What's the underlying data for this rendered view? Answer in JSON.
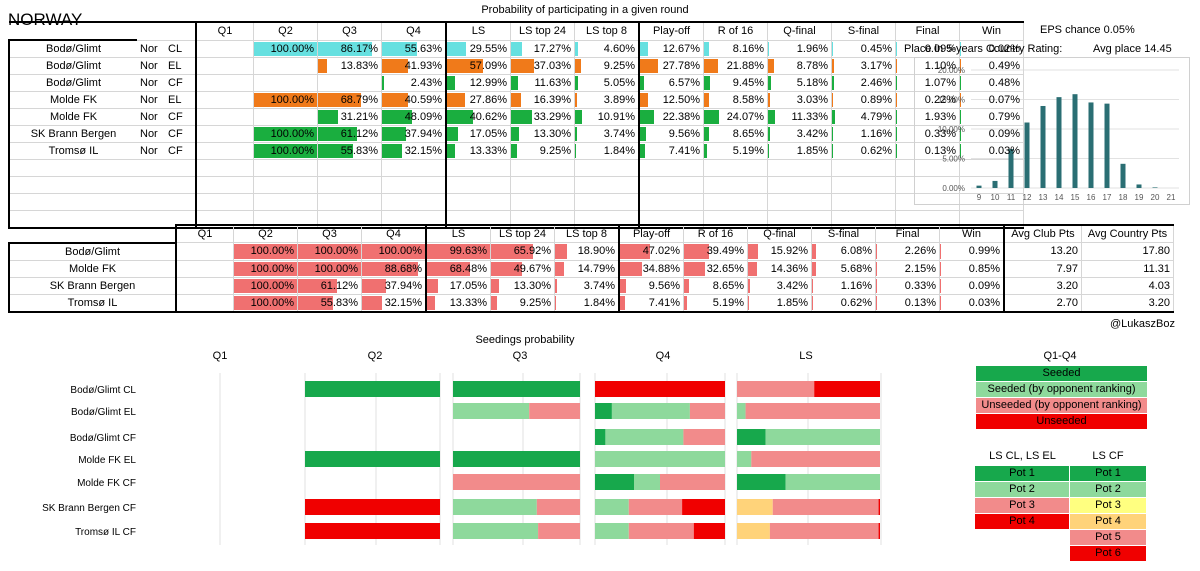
{
  "country": "NORWAY",
  "table1": {
    "title": "Probability of participating in a given round",
    "headers": [
      "Q1",
      "Q2",
      "Q3",
      "Q4",
      "LS",
      "LS top 24",
      "LS top 8",
      "Play-off",
      "R of 16",
      "Q-final",
      "S-final",
      "Final",
      "Win"
    ],
    "rows": [
      {
        "club": "Bodø/Glimt",
        "nat": "Nor",
        "comp": "CL",
        "values": [
          "",
          "100.00%",
          "86.17%",
          "55.63%",
          "29.55%",
          "17.27%",
          "4.60%",
          "12.67%",
          "8.16%",
          "1.96%",
          "0.45%",
          "0.09%",
          "0.02%"
        ]
      },
      {
        "club": "Bodø/Glimt",
        "nat": "Nor",
        "comp": "EL",
        "values": [
          "",
          "",
          "13.83%",
          "41.93%",
          "57.09%",
          "37.03%",
          "9.25%",
          "27.78%",
          "21.88%",
          "8.78%",
          "3.17%",
          "1.10%",
          "0.49%"
        ]
      },
      {
        "club": "Bodø/Glimt",
        "nat": "Nor",
        "comp": "CF",
        "values": [
          "",
          "",
          "",
          "2.43%",
          "12.99%",
          "11.63%",
          "5.05%",
          "6.57%",
          "9.45%",
          "5.18%",
          "2.46%",
          "1.07%",
          "0.48%"
        ]
      },
      {
        "club": "Molde FK",
        "nat": "Nor",
        "comp": "EL",
        "values": [
          "",
          "100.00%",
          "68.79%",
          "40.59%",
          "27.86%",
          "16.39%",
          "3.89%",
          "12.50%",
          "8.58%",
          "3.03%",
          "0.89%",
          "0.22%",
          "0.07%"
        ]
      },
      {
        "club": "Molde FK",
        "nat": "Nor",
        "comp": "CF",
        "values": [
          "",
          "",
          "31.21%",
          "48.09%",
          "40.62%",
          "33.29%",
          "10.91%",
          "22.38%",
          "24.07%",
          "11.33%",
          "4.79%",
          "1.93%",
          "0.79%"
        ]
      },
      {
        "club": "SK Brann Bergen",
        "nat": "Nor",
        "comp": "CF",
        "values": [
          "",
          "100.00%",
          "61.12%",
          "37.94%",
          "17.05%",
          "13.30%",
          "3.74%",
          "9.56%",
          "8.65%",
          "3.42%",
          "1.16%",
          "0.33%",
          "0.09%"
        ]
      },
      {
        "club": "Tromsø IL",
        "nat": "Nor",
        "comp": "CF",
        "values": [
          "",
          "100.00%",
          "55.83%",
          "32.15%",
          "13.33%",
          "9.25%",
          "1.84%",
          "7.41%",
          "5.19%",
          "1.85%",
          "0.62%",
          "0.13%",
          "0.03%"
        ]
      }
    ],
    "empty_rows": 4
  },
  "eps": {
    "label": "EPS chance",
    "value": "0.05%"
  },
  "place": {
    "label": "Place in 5-years Country  Rating:",
    "avg_label": "Avg place",
    "avg_value": "14.45"
  },
  "table2": {
    "headers": [
      "Q1",
      "Q2",
      "Q3",
      "Q4",
      "LS",
      "LS top 24",
      "LS top 8",
      "Play-off",
      "R of 16",
      "Q-final",
      "S-final",
      "Final",
      "Win",
      "Avg Club Pts",
      "Avg Country Pts"
    ],
    "rows": [
      {
        "club": "Bodø/Glimt",
        "values": [
          "",
          "100.00%",
          "100.00%",
          "100.00%",
          "99.63%",
          "65.92%",
          "18.90%",
          "47.02%",
          "39.49%",
          "15.92%",
          "6.08%",
          "2.26%",
          "0.99%",
          "13.20",
          "17.80"
        ]
      },
      {
        "club": "Molde FK",
        "values": [
          "",
          "100.00%",
          "100.00%",
          "88.68%",
          "68.48%",
          "49.67%",
          "14.79%",
          "34.88%",
          "32.65%",
          "14.36%",
          "5.68%",
          "2.15%",
          "0.85%",
          "7.97",
          "11.31"
        ]
      },
      {
        "club": "SK Brann Bergen",
        "values": [
          "",
          "100.00%",
          "61.12%",
          "37.94%",
          "17.05%",
          "13.30%",
          "3.74%",
          "9.56%",
          "8.65%",
          "3.42%",
          "1.16%",
          "0.33%",
          "0.09%",
          "3.20",
          "4.03"
        ]
      },
      {
        "club": "Tromsø IL",
        "values": [
          "",
          "100.00%",
          "55.83%",
          "32.15%",
          "13.33%",
          "9.25%",
          "1.84%",
          "7.41%",
          "5.19%",
          "1.85%",
          "0.62%",
          "0.13%",
          "0.03%",
          "2.70",
          "3.20"
        ]
      }
    ]
  },
  "credit": "@LukaszBoz",
  "colors": {
    "cyan": "#66e0e0",
    "orange": "#f07a1a",
    "green": "#1aae3f",
    "red": "#f07070",
    "seeded": "#17a84c",
    "seeded_rank": "#8ed99c",
    "unseeded_rank": "#f28b8b",
    "unseeded": "#f00000",
    "pot3cf": "#ffff80",
    "pot4cf": "#ffd37a"
  },
  "chart_data": [
    {
      "type": "bar",
      "categories": [
        "9",
        "10",
        "11",
        "12",
        "13",
        "14",
        "15",
        "16",
        "17",
        "18",
        "19",
        "20",
        "21"
      ],
      "values": [
        0.4,
        1.2,
        6.6,
        11.1,
        13.9,
        15.4,
        15.9,
        14.5,
        14.3,
        4.1,
        0.6,
        0.1,
        0.0
      ],
      "ylim": [
        0,
        20
      ],
      "yticks": [
        "0.00%",
        "5.00%",
        "10.00%",
        "15.00%",
        "20.00%"
      ],
      "grid": true,
      "color": "#2a6e73"
    },
    {
      "type": "bar",
      "title": "Seedings probability",
      "columns": [
        "Q1",
        "Q2",
        "Q3",
        "Q4",
        "LS"
      ],
      "rows": [
        {
          "label": "Bodø/Glimt  CL",
          "segments": [
            [],
            [
              [
                "seeded",
                1.0
              ]
            ],
            [
              [
                "seeded",
                1.0
              ]
            ],
            [
              [
                "unseeded",
                1.0
              ]
            ],
            [
              [
                "unseeded_rank",
                0.54
              ],
              [
                "unseeded",
                0.46
              ]
            ]
          ]
        },
        {
          "label": "Bodø/Glimt  EL",
          "segments": [
            [],
            [],
            [
              [
                "seeded_rank",
                0.6
              ],
              [
                "unseeded_rank",
                0.4
              ]
            ],
            [
              [
                "seeded",
                0.13
              ],
              [
                "seeded_rank",
                0.6
              ],
              [
                "unseeded_rank",
                0.27
              ]
            ],
            [
              [
                "seeded_rank",
                0.06
              ],
              [
                "unseeded_rank",
                0.94
              ]
            ]
          ]
        },
        {
          "label": "Bodø/Glimt  CF",
          "segments": [
            [],
            [],
            [],
            [
              [
                "seeded",
                0.08
              ],
              [
                "seeded_rank",
                0.6
              ],
              [
                "unseeded_rank",
                0.32
              ]
            ],
            [
              [
                "seeded",
                0.2
              ],
              [
                "seeded_rank",
                0.8
              ]
            ]
          ]
        },
        {
          "label": "Molde FK  EL",
          "segments": [
            [],
            [
              [
                "seeded",
                1.0
              ]
            ],
            [
              [
                "seeded",
                1.0
              ]
            ],
            [
              [
                "seeded_rank",
                1.0
              ]
            ],
            [
              [
                "seeded_rank",
                0.1
              ],
              [
                "unseeded_rank",
                0.9
              ]
            ]
          ]
        },
        {
          "label": "Molde FK  CF",
          "segments": [
            [],
            [],
            [
              [
                "unseeded_rank",
                1.0
              ]
            ],
            [
              [
                "seeded",
                0.3
              ],
              [
                "seeded_rank",
                0.2
              ],
              [
                "unseeded_rank",
                0.5
              ]
            ],
            [
              [
                "seeded",
                0.34
              ],
              [
                "seeded_rank",
                0.66
              ]
            ]
          ]
        },
        {
          "label": "SK Brann Bergen  CF",
          "segments": [
            [],
            [
              [
                "unseeded",
                1.0
              ]
            ],
            [
              [
                "seeded_rank",
                0.66
              ],
              [
                "unseeded_rank",
                0.34
              ]
            ],
            [
              [
                "seeded_rank",
                0.26
              ],
              [
                "unseeded_rank",
                0.41
              ],
              [
                "unseeded",
                0.33
              ]
            ],
            [
              [
                "pot4cf",
                0.25
              ],
              [
                "unseeded_rank",
                0.74
              ],
              [
                "unseeded",
                0.01
              ]
            ]
          ]
        },
        {
          "label": "Tromsø IL  CF",
          "segments": [
            [],
            [
              [
                "unseeded",
                1.0
              ]
            ],
            [
              [
                "seeded_rank",
                0.67
              ],
              [
                "unseeded_rank",
                0.33
              ]
            ],
            [
              [
                "seeded_rank",
                0.26
              ],
              [
                "unseeded_rank",
                0.5
              ],
              [
                "unseeded",
                0.24
              ]
            ],
            [
              [
                "pot4cf",
                0.23
              ],
              [
                "unseeded_rank",
                0.76
              ],
              [
                "unseeded",
                0.01
              ]
            ]
          ]
        }
      ]
    }
  ],
  "legend": {
    "q_title": "Q1-Q4",
    "q_items": [
      {
        "label": "Seeded",
        "color": "seeded"
      },
      {
        "label": "Seeded (by opponent ranking)",
        "color": "seeded_rank"
      },
      {
        "label": "Unseeded (by opponent ranking)",
        "color": "unseeded_rank"
      },
      {
        "label": "Unseeded",
        "color": "unseeded"
      }
    ],
    "ls_header_left": "LS CL, LS EL",
    "ls_header_right": "LS CF",
    "ls_left": [
      {
        "label": "Pot 1",
        "color": "seeded"
      },
      {
        "label": "Pot 2",
        "color": "seeded_rank"
      },
      {
        "label": "Pot 3",
        "color": "unseeded_rank"
      },
      {
        "label": "Pot 4",
        "color": "unseeded"
      }
    ],
    "ls_right": [
      {
        "label": "Pot 1",
        "color": "seeded"
      },
      {
        "label": "Pot 2",
        "color": "seeded_rank"
      },
      {
        "label": "Pot 3",
        "color": "pot3cf"
      },
      {
        "label": "Pot 4",
        "color": "pot4cf"
      },
      {
        "label": "Pot 5",
        "color": "unseeded_rank"
      },
      {
        "label": "Pot 6",
        "color": "unseeded"
      }
    ]
  }
}
